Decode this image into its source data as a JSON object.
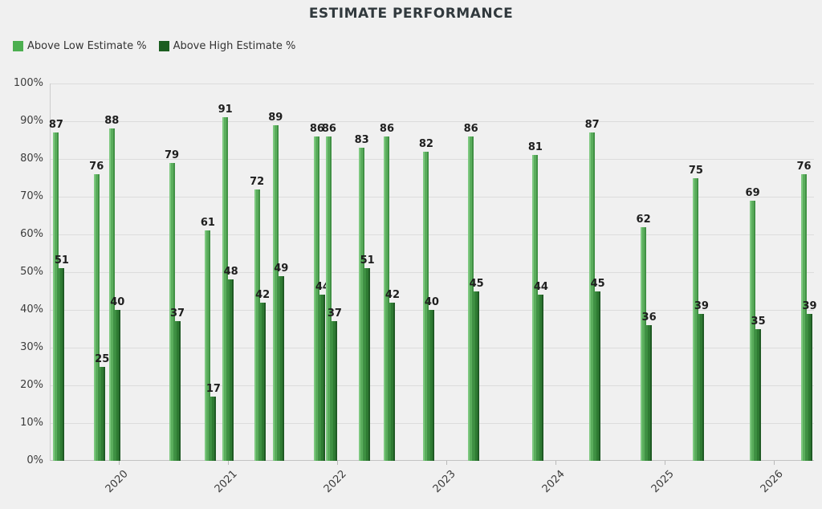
{
  "chart": {
    "title": "ESTIMATE PERFORMANCE",
    "legend": [
      {
        "label": "Above Low Estimate %",
        "swatch": "#4caf50"
      },
      {
        "label": "Above High Estimate %",
        "swatch": "#1b5e20"
      }
    ]
  },
  "colors": {
    "background": "#f0f0f0",
    "gridline": "#dcdcdc",
    "axis_line": "#c6c6c6",
    "title_text": "#31393d",
    "tick_text": "#3c3c3c",
    "value_text": "#1e1e1e",
    "low_bar_gradient": [
      "#7dc87f",
      "#5aad5c",
      "#419145"
    ],
    "high_bar_gradient": [
      "#3c8f40",
      "#2e7a32",
      "#1f5a24"
    ]
  },
  "chart_data": {
    "type": "bar",
    "title": "ESTIMATE PERFORMANCE",
    "xlabel": "",
    "ylabel": "",
    "ylim": [
      0,
      100
    ],
    "xlim": [
      2019.375,
      2026.375
    ],
    "grid": true,
    "legend_position": "top-left",
    "x_ticks": [
      "2020",
      "2021",
      "2022",
      "2023",
      "2024",
      "2025",
      "2026"
    ],
    "y_ticks": [
      "0%",
      "10%",
      "20%",
      "30%",
      "40%",
      "50%",
      "60%",
      "70%",
      "80%",
      "90%",
      "100%"
    ],
    "x": [
      2019.4,
      2019.77,
      2019.91,
      2020.46,
      2020.79,
      2020.95,
      2021.24,
      2021.41,
      2021.79,
      2021.9,
      2022.2,
      2022.43,
      2022.79,
      2023.2,
      2023.79,
      2024.31,
      2024.78,
      2025.26,
      2025.78,
      2026.25
    ],
    "series": [
      {
        "name": "Above Low Estimate %",
        "values": [
          87,
          76,
          88,
          79,
          61,
          91,
          72,
          89,
          86,
          86,
          83,
          86,
          82,
          86,
          81,
          87,
          62,
          75,
          69,
          76
        ]
      },
      {
        "name": "Above High Estimate %",
        "values": [
          51,
          25,
          40,
          37,
          17,
          48,
          42,
          49,
          44,
          37,
          51,
          42,
          40,
          45,
          44,
          45,
          36,
          39,
          35,
          39
        ]
      }
    ]
  }
}
